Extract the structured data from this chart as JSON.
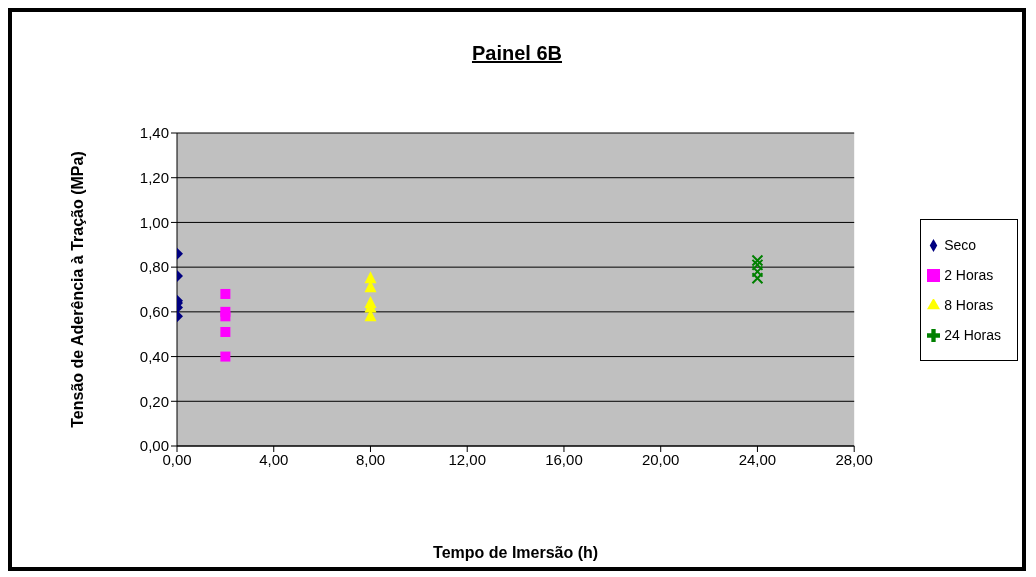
{
  "chart_data": {
    "type": "scatter",
    "title": "Painel 6B",
    "xlabel": "Tempo de Imersão (h)",
    "ylabel": "Tensão de Aderência à Tração (MPa)",
    "series": [
      {
        "name": "Seco",
        "color": "#000080",
        "marker": "diamond",
        "x": [
          0,
          0,
          0,
          0,
          0,
          0
        ],
        "values": [
          0.86,
          0.76,
          0.65,
          0.64,
          0.62,
          0.58
        ]
      },
      {
        "name": "2 Horas",
        "color": "#ff00ff",
        "marker": "square",
        "x": [
          2,
          2,
          2,
          2,
          2
        ],
        "values": [
          0.68,
          0.6,
          0.58,
          0.51,
          0.4
        ]
      },
      {
        "name": "8 Horas",
        "color": "#ffff00",
        "marker": "triangle",
        "x": [
          8,
          8,
          8,
          8,
          8
        ],
        "values": [
          0.75,
          0.71,
          0.64,
          0.62,
          0.58
        ]
      },
      {
        "name": "24 Horas",
        "color": "#008000",
        "marker": "cross",
        "x": [
          24,
          24,
          24,
          24
        ],
        "values": [
          0.83,
          0.81,
          0.78,
          0.75
        ]
      }
    ],
    "xlim": [
      0,
      28
    ],
    "xticks": [
      {
        "value": 0,
        "label": "0,00"
      },
      {
        "value": 4,
        "label": "4,00"
      },
      {
        "value": 8,
        "label": "8,00"
      },
      {
        "value": 12,
        "label": "12,00"
      },
      {
        "value": 16,
        "label": "16,00"
      },
      {
        "value": 20,
        "label": "20,00"
      },
      {
        "value": 24,
        "label": "24,00"
      },
      {
        "value": 28,
        "label": "28,00"
      }
    ],
    "ylim": [
      0,
      1.4
    ],
    "yticks": [
      {
        "value": 0,
        "label": "0,00"
      },
      {
        "value": 0.2,
        "label": "0,20"
      },
      {
        "value": 0.4,
        "label": "0,40"
      },
      {
        "value": 0.6,
        "label": "0,60"
      },
      {
        "value": 0.8,
        "label": "0,80"
      },
      {
        "value": 1,
        "label": "1,00"
      },
      {
        "value": 1.2,
        "label": "1,20"
      },
      {
        "value": 1.4,
        "label": "1,40"
      }
    ],
    "grid": "y",
    "legend": "right"
  }
}
